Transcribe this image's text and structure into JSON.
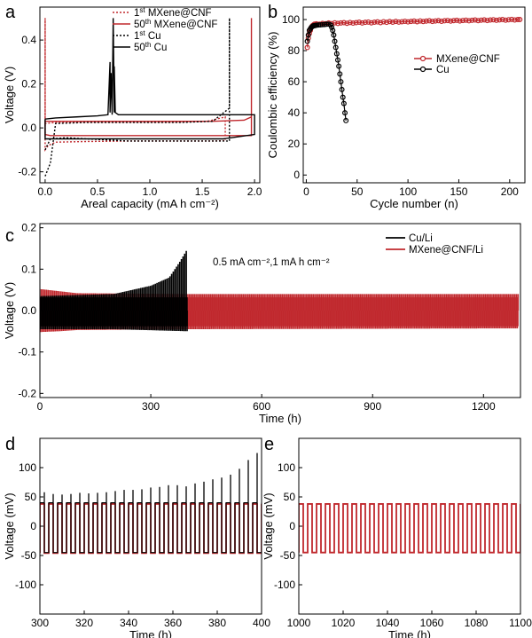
{
  "colors": {
    "red": "#c0282d",
    "black": "#000000"
  },
  "chart_data": [
    {
      "id": "a",
      "panel_label": "a",
      "type": "line",
      "xlabel": "Areal capacity (mA h cm⁻²)",
      "ylabel": "Voltage (V)",
      "xlim": [
        -0.05,
        2.05
      ],
      "ylim": [
        -0.25,
        0.55
      ],
      "xticks": [
        0.0,
        0.5,
        1.0,
        1.5,
        2.0
      ],
      "xtick_labels": [
        "0.0",
        "0.5",
        "1.0",
        "1.5",
        "2.0"
      ],
      "yticks": [
        -0.2,
        0.0,
        0.2,
        0.4
      ],
      "ytick_labels": [
        "-0.2",
        "0.0",
        "0.2",
        "0.4"
      ],
      "legend": [
        {
          "base": "1",
          "sup": "st",
          "rest": " MXene@CNF",
          "style": "red-dotted"
        },
        {
          "base": "50",
          "sup": "th",
          "rest": " MXene@CNF",
          "style": "red-solid"
        },
        {
          "base": "1",
          "sup": "st",
          "rest": " Cu",
          "style": "black-dotted"
        },
        {
          "base": "50",
          "sup": "th",
          "rest": " Cu",
          "style": "black-solid"
        }
      ],
      "series": [
        {
          "name": "1st MXene@CNF",
          "style": "red-dotted",
          "x": [
            0.0,
            0.0,
            0.0,
            0.03,
            0.1,
            0.4,
            0.8,
            1.2,
            1.6,
            1.72,
            1.72,
            1.72,
            1.55,
            1.2,
            0.8,
            0.4,
            0.1,
            0.0,
            0.0
          ],
          "y": [
            0.5,
            0.05,
            -0.1,
            -0.08,
            -0.065,
            -0.062,
            -0.06,
            -0.06,
            -0.06,
            -0.058,
            -0.04,
            0.05,
            0.03,
            0.025,
            0.025,
            0.025,
            0.025,
            0.02,
            0.5
          ]
        },
        {
          "name": "50th MXene@CNF",
          "style": "red-solid",
          "x": [
            0.0,
            0.0,
            0.05,
            0.4,
            0.8,
            1.2,
            1.6,
            1.9,
            1.97,
            1.97,
            1.97,
            1.97,
            1.9,
            1.6,
            1.2,
            0.8,
            0.4,
            0.0,
            0.0
          ],
          "y": [
            0.02,
            -0.03,
            -0.035,
            -0.035,
            -0.035,
            -0.035,
            -0.035,
            -0.035,
            -0.035,
            -0.02,
            0.5,
            0.05,
            0.035,
            0.03,
            0.03,
            0.03,
            0.03,
            0.03,
            0.02
          ]
        },
        {
          "name": "1st Cu",
          "style": "black-dotted",
          "x": [
            0.0,
            0.05,
            0.2,
            0.4,
            0.8,
            1.2,
            1.6,
            1.76,
            1.76,
            1.76,
            1.6,
            1.3,
            1.0,
            0.7,
            0.4,
            0.1,
            0.05,
            0.0
          ],
          "y": [
            -0.1,
            -0.05,
            -0.045,
            -0.05,
            -0.06,
            -0.06,
            -0.06,
            -0.06,
            0.5,
            0.09,
            0.03,
            0.025,
            0.025,
            0.025,
            0.025,
            0.02,
            -0.16,
            -0.22
          ]
        },
        {
          "name": "50th Cu",
          "style": "black-solid",
          "x": [
            0.0,
            0.1,
            0.3,
            0.5,
            0.6,
            0.62,
            0.62,
            0.63,
            0.64,
            0.65,
            0.66,
            0.66,
            0.67,
            0.7,
            0.9,
            1.2,
            1.5,
            1.8,
            2.0,
            2.0,
            1.7,
            1.2,
            0.8,
            0.4,
            0.1,
            0.0,
            0.0
          ],
          "y": [
            0.04,
            0.045,
            0.05,
            0.055,
            0.06,
            0.3,
            0.07,
            0.25,
            0.06,
            0.5,
            0.07,
            0.28,
            0.07,
            0.06,
            0.06,
            0.06,
            0.06,
            0.06,
            0.06,
            -0.03,
            -0.05,
            -0.05,
            -0.05,
            -0.05,
            -0.05,
            -0.05,
            0.04
          ]
        }
      ]
    },
    {
      "id": "b",
      "panel_label": "b",
      "type": "scatter",
      "xlabel": "Cycle number (n)",
      "ylabel": "Coulombic efficiency (%)",
      "xlim": [
        -3,
        215
      ],
      "ylim": [
        -5,
        108
      ],
      "xticks": [
        0,
        50,
        100,
        150,
        200
      ],
      "xtick_labels": [
        "0",
        "50",
        "100",
        "150",
        "200"
      ],
      "yticks": [
        0,
        20,
        40,
        60,
        80,
        100
      ],
      "ytick_labels": [
        "0",
        "20",
        "40",
        "60",
        "80",
        "100"
      ],
      "legend": [
        {
          "label": "MXene@CNF",
          "style": "red-marker"
        },
        {
          "label": "Cu",
          "style": "black-marker"
        }
      ],
      "series": [
        {
          "name": "MXene@CNF",
          "style": "red-marker",
          "x": [
            1,
            2,
            3,
            4,
            5,
            6,
            7,
            8,
            9,
            10,
            13,
            16,
            19,
            22,
            25,
            28,
            31,
            34,
            37,
            40,
            43,
            46,
            49,
            52,
            55,
            58,
            61,
            64,
            67,
            70,
            73,
            76,
            79,
            82,
            85,
            88,
            91,
            94,
            97,
            100,
            103,
            106,
            109,
            112,
            115,
            118,
            121,
            124,
            127,
            130,
            133,
            136,
            139,
            142,
            145,
            148,
            151,
            154,
            157,
            160,
            163,
            166,
            169,
            172,
            175,
            178,
            181,
            184,
            187,
            190,
            193,
            196,
            199,
            202,
            205,
            208,
            210
          ],
          "y": [
            82,
            88,
            91,
            93,
            95,
            96,
            96.5,
            97,
            97,
            97.2,
            97,
            97.5,
            97.3,
            97.8,
            97.4,
            97.9,
            97.5,
            97.8,
            98,
            97.6,
            98.1,
            97.7,
            98,
            98.3,
            97.8,
            98.2,
            98.4,
            97.9,
            98.3,
            98.5,
            98,
            98.6,
            98.2,
            98.7,
            98.3,
            98.8,
            98.4,
            98.6,
            98.9,
            98.5,
            98.8,
            99,
            98.6,
            99.1,
            98.7,
            99,
            99.2,
            98.8,
            99.1,
            99.3,
            98.9,
            99.2,
            99.4,
            99,
            99.3,
            99.5,
            99.1,
            99.4,
            99.6,
            99.2,
            99.5,
            99.7,
            99.3,
            99.6,
            99.8,
            99.4,
            99.7,
            99.9,
            99.5,
            99.8,
            100,
            99.6,
            99.9,
            100.1,
            99.7,
            100,
            100
          ]
        },
        {
          "name": "Cu",
          "style": "black-marker",
          "x": [
            1,
            2,
            3,
            4,
            5,
            6,
            7,
            8,
            9,
            10,
            12,
            14,
            16,
            18,
            20,
            22,
            24,
            25,
            26,
            27,
            28,
            29,
            30,
            31,
            32,
            33,
            34,
            35,
            36,
            37,
            38,
            39
          ],
          "y": [
            86,
            90,
            93,
            94,
            95,
            95.5,
            96,
            96,
            96.2,
            96.3,
            96.5,
            96.6,
            96.7,
            96.8,
            97,
            97,
            96.5,
            95,
            93,
            90,
            86,
            82,
            78,
            74,
            70,
            65,
            60,
            55,
            50,
            46,
            40,
            35
          ]
        }
      ]
    },
    {
      "id": "c",
      "panel_label": "c",
      "type": "line",
      "xlabel": "Time (h)",
      "ylabel": "Voltage (V)",
      "xlim": [
        0,
        1300
      ],
      "ylim": [
        -0.21,
        0.21
      ],
      "xticks": [
        0,
        300,
        600,
        900,
        1200
      ],
      "xtick_labels": [
        "0",
        "300",
        "600",
        "900",
        "1200"
      ],
      "yticks": [
        -0.2,
        -0.1,
        0.0,
        0.1,
        0.2
      ],
      "ytick_labels": [
        "-0.2",
        "-0.1",
        "0.0",
        "0.1",
        "0.2"
      ],
      "annotation": "0.5 mA cm⁻²,1 mA h cm⁻²",
      "legend": [
        {
          "label": "Cu/Li",
          "style": "black-solid"
        },
        {
          "label": "MXene@CNF/Li",
          "style": "red-solid"
        }
      ],
      "series": [
        {
          "name": "MXene@CNF/Li",
          "style": "red-band",
          "t_end": 1295,
          "upper": {
            "x": [
              0,
              50,
              100,
              400,
              1295
            ],
            "y": [
              0.052,
              0.047,
              0.042,
              0.04,
              0.04
            ]
          },
          "lower": {
            "x": [
              0,
              50,
              100,
              400,
              1295
            ],
            "y": [
              -0.052,
              -0.05,
              -0.047,
              -0.045,
              -0.043
            ]
          }
        },
        {
          "name": "Cu/Li",
          "style": "black-band",
          "t_end": 400,
          "upper": {
            "x": [
              0,
              200,
              300,
              350,
              380,
              400
            ],
            "y": [
              0.035,
              0.04,
              0.06,
              0.08,
              0.12,
              0.15
            ]
          },
          "lower": {
            "x": [
              0,
              200,
              400
            ],
            "y": [
              -0.045,
              -0.045,
              -0.05
            ]
          }
        }
      ]
    },
    {
      "id": "d",
      "panel_label": "d",
      "type": "line",
      "xlabel": "Time (h)",
      "ylabel": "Voltage (mV)",
      "xlim": [
        300,
        400
      ],
      "ylim": [
        -150,
        150
      ],
      "xticks": [
        300,
        320,
        340,
        360,
        380,
        400
      ],
      "xtick_labels": [
        "300",
        "320",
        "340",
        "360",
        "380",
        "400"
      ],
      "yticks": [
        -100,
        -50,
        0,
        50,
        100
      ],
      "ytick_labels": [
        "-100",
        "-50",
        "0",
        "50",
        "100"
      ],
      "series": [
        {
          "name": "Cu/Li",
          "style": "black-square",
          "period": 4,
          "high": 40,
          "low": -45,
          "spike_x": [
            302,
            306,
            310,
            314,
            318,
            322,
            326,
            330,
            334,
            338,
            342,
            346,
            350,
            354,
            358,
            362,
            366,
            370,
            374,
            378,
            382,
            386,
            390,
            394,
            398
          ],
          "spike_y": [
            58,
            55,
            54,
            55,
            57,
            56,
            57,
            58,
            60,
            62,
            62,
            63,
            66,
            67,
            70,
            70,
            68,
            73,
            76,
            80,
            83,
            88,
            98,
            113,
            125
          ]
        },
        {
          "name": "MXene@CNF/Li",
          "style": "red-square",
          "period": 4,
          "high": 38,
          "low": -46
        }
      ]
    },
    {
      "id": "e",
      "panel_label": "e",
      "type": "line",
      "xlabel": "Time (h)",
      "ylabel": "Voltage (mV)",
      "xlim": [
        1000,
        1100
      ],
      "ylim": [
        -150,
        150
      ],
      "xticks": [
        1000,
        1020,
        1040,
        1060,
        1080,
        1100
      ],
      "xtick_labels": [
        "1000",
        "1020",
        "1040",
        "1060",
        "1080",
        "1100"
      ],
      "yticks": [
        -100,
        -50,
        0,
        50,
        100
      ],
      "ytick_labels": [
        "-100",
        "-50",
        "0",
        "50",
        "100"
      ],
      "series": [
        {
          "name": "MXene@CNF/Li",
          "style": "red-square",
          "period": 4,
          "high": 38,
          "low": -45
        }
      ]
    }
  ]
}
